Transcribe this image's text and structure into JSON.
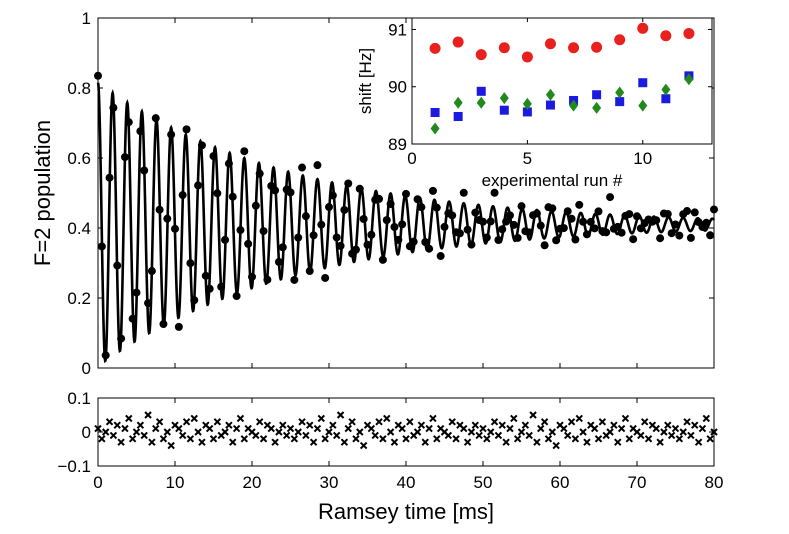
{
  "chart_data": [
    {
      "id": "main",
      "type": "scatter",
      "title": "",
      "xlabel": "",
      "ylabel": "F=2 population",
      "xlim": [
        0,
        80
      ],
      "ylim": [
        0,
        1
      ],
      "xticks": [
        0,
        10,
        20,
        30,
        40,
        50,
        60,
        70,
        80
      ],
      "yticks": [
        0,
        0.2,
        0.4,
        0.6,
        0.8,
        1
      ],
      "ytick_labels": [
        "0",
        "0.2",
        "0.4",
        "0.6",
        "0.8",
        "1"
      ],
      "grid": false,
      "series": [
        {
          "name": "data",
          "marker": "circle",
          "color": "#000000",
          "model": {
            "offset": 0.41,
            "amplitude": 0.405,
            "decay_ms": 25,
            "period_ms": 1.9,
            "phase": 0.0
          },
          "x_start": 0,
          "x_end": 80,
          "n_points": 161,
          "noise": [
            0.02,
            -0.03,
            0.01,
            0.04,
            -0.02,
            0.03,
            -0.01,
            0.0,
            0.02,
            -0.04,
            0.03,
            0.01,
            -0.02,
            0.05,
            -0.01,
            0.02,
            -0.03,
            0.0,
            0.04,
            -0.02,
            0.01,
            -0.03,
            0.02,
            0.03,
            -0.01,
            0.0,
            -0.02,
            0.04,
            0.01,
            -0.03
          ]
        },
        {
          "name": "fit",
          "type": "line",
          "color": "#000000",
          "model": {
            "offset": 0.41,
            "amplitude": 0.405,
            "decay_ms": 25,
            "period_ms": 1.9,
            "phase": 0.0
          }
        }
      ]
    },
    {
      "id": "residuals",
      "type": "scatter",
      "xlabel": "Ramsey time [ms]",
      "ylabel": "",
      "xlim": [
        0,
        80
      ],
      "ylim": [
        -0.1,
        0.1
      ],
      "xticks": [
        0,
        10,
        20,
        30,
        40,
        50,
        60,
        70,
        80
      ],
      "yticks": [
        -0.1,
        0,
        0.1
      ],
      "ytick_labels": [
        "−0.1",
        "0",
        "0.1"
      ],
      "series": [
        {
          "name": "residuals",
          "marker": "x",
          "color": "#000000",
          "x_start": 0,
          "x_end": 80,
          "n_points": 161,
          "values": [
            0.01,
            -0.02,
            0.0,
            0.03,
            -0.01,
            0.02,
            -0.03,
            0.01,
            0.04,
            -0.02,
            0.0,
            0.02,
            -0.01,
            0.05,
            -0.03,
            0.01,
            0.03,
            -0.02,
            0.0,
            -0.04,
            0.02,
            0.01,
            -0.01,
            0.03,
            -0.02,
            0.04,
            0.0,
            -0.03,
            0.02,
            0.01,
            -0.02,
            0.03,
            -0.01,
            0.0,
            0.02,
            -0.03,
            0.01,
            0.04,
            -0.02,
            0.01,
            0.0,
            -0.01,
            0.03,
            -0.02,
            0.02,
            0.01,
            -0.03,
            0.0,
            0.02,
            -0.01
          ]
        }
      ]
    },
    {
      "id": "inset",
      "type": "scatter",
      "xlabel": "experimental run #",
      "ylabel": "shift [Hz]",
      "xlim": [
        0,
        13
      ],
      "ylim": [
        89,
        91.2
      ],
      "xticks": [
        0,
        5,
        10
      ],
      "yticks": [
        89,
        90,
        91
      ],
      "series": [
        {
          "name": "red",
          "marker": "circle",
          "color": "#e8201e",
          "x": [
            1,
            2,
            3,
            4,
            5,
            6,
            7,
            8,
            9,
            10,
            11,
            12
          ],
          "y": [
            90.67,
            90.78,
            90.56,
            90.68,
            90.52,
            90.75,
            90.68,
            90.69,
            90.82,
            91.02,
            90.89,
            90.93
          ]
        },
        {
          "name": "blue",
          "marker": "square",
          "color": "#1b1be0",
          "x": [
            1,
            2,
            3,
            4,
            5,
            6,
            7,
            8,
            9,
            10,
            11,
            12
          ],
          "y": [
            89.55,
            89.48,
            89.92,
            89.59,
            89.56,
            89.68,
            89.76,
            89.86,
            89.74,
            90.07,
            89.79,
            90.19
          ]
        },
        {
          "name": "green",
          "marker": "diamond",
          "color": "#22891c",
          "x": [
            1,
            2,
            3,
            4,
            5,
            6,
            7,
            8,
            9,
            10,
            11,
            12
          ],
          "y": [
            89.27,
            89.72,
            89.72,
            89.8,
            89.7,
            89.86,
            89.67,
            89.63,
            89.9,
            89.67,
            89.95,
            90.13
          ]
        }
      ]
    }
  ]
}
